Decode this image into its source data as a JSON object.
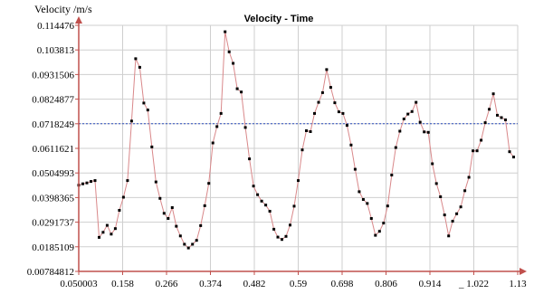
{
  "chart_data": {
    "type": "line",
    "title": "Velocity - Time",
    "ylabel": "Velocity /m/s",
    "xlabel": "",
    "colors": {
      "axis": "#c0504d",
      "grid": "#cfcfcf",
      "line": "#d9888a",
      "marker": "#000000",
      "reference": "#2b4fbf"
    },
    "xlim": [
      0.050003,
      1.13
    ],
    "ylim": [
      0.00784812,
      0.114476
    ],
    "x_ticks": [
      0.050003,
      0.158,
      0.266,
      0.374,
      0.482,
      0.59,
      0.698,
      0.806,
      0.914,
      1.022,
      1.13
    ],
    "x_tick_labels": [
      "0.050003",
      "0.158",
      "0.266",
      "0.374",
      "0.482",
      "0.59",
      "0.698",
      "0.806",
      "0.914",
      "_ 1.022",
      "1.13"
    ],
    "y_ticks": [
      0.00784812,
      0.0185109,
      0.0291737,
      0.0398365,
      0.0504993,
      0.0611621,
      0.0718249,
      0.0824877,
      0.0931506,
      0.103813,
      0.114476
    ],
    "y_tick_labels": [
      "0.00784812",
      "0.0185109",
      "0.0291737",
      "0.0398365",
      "0.0504993",
      "0.0611621",
      "0.0718249",
      "0.0824877",
      "0.0931506",
      "0.103813",
      "0.114476"
    ],
    "reference_line": 0.0718249,
    "grid": true,
    "series": [
      {
        "x": [
          0.05,
          0.06,
          0.07,
          0.08,
          0.09,
          0.1,
          0.11,
          0.12,
          0.13,
          0.14,
          0.15,
          0.16,
          0.17,
          0.18,
          0.19,
          0.2,
          0.21,
          0.22,
          0.23,
          0.24,
          0.25,
          0.26,
          0.27,
          0.28,
          0.29,
          0.3,
          0.31,
          0.32,
          0.33,
          0.34,
          0.35,
          0.36,
          0.37,
          0.38,
          0.39,
          0.4,
          0.41,
          0.42,
          0.43,
          0.44,
          0.45,
          0.46,
          0.47,
          0.48,
          0.49,
          0.5,
          0.51,
          0.52,
          0.53,
          0.54,
          0.55,
          0.56,
          0.57,
          0.58,
          0.59,
          0.6,
          0.61,
          0.62,
          0.63,
          0.64,
          0.65,
          0.66,
          0.67,
          0.68,
          0.69,
          0.7,
          0.71,
          0.72,
          0.73,
          0.74,
          0.75,
          0.76,
          0.77,
          0.78,
          0.79,
          0.8,
          0.81,
          0.82,
          0.83,
          0.84,
          0.85,
          0.86,
          0.87,
          0.88,
          0.89,
          0.9,
          0.91,
          0.92,
          0.93,
          0.94,
          0.95,
          0.96,
          0.97,
          0.98,
          0.99,
          1.0,
          1.01,
          1.02,
          1.03,
          1.04,
          1.05,
          1.06,
          1.07,
          1.08,
          1.09,
          1.1,
          1.11,
          1.12
        ],
        "values": [
          0.0452,
          0.0458,
          0.0462,
          0.0468,
          0.0472,
          0.0226,
          0.0248,
          0.0278,
          0.024,
          0.0264,
          0.0343,
          0.04,
          0.0472,
          0.073,
          0.1,
          0.0963,
          0.0808,
          0.0778,
          0.0618,
          0.0466,
          0.0395,
          0.033,
          0.0308,
          0.0355,
          0.0274,
          0.0232,
          0.0196,
          0.018,
          0.0196,
          0.0213,
          0.0277,
          0.0363,
          0.046,
          0.0635,
          0.0706,
          0.0763,
          0.1117,
          0.103,
          0.098,
          0.087,
          0.0856,
          0.0702,
          0.0566,
          0.0448,
          0.0411,
          0.0383,
          0.0366,
          0.0339,
          0.0261,
          0.0227,
          0.0217,
          0.023,
          0.0279,
          0.0361,
          0.0472,
          0.0605,
          0.0688,
          0.0684,
          0.0763,
          0.0811,
          0.0853,
          0.0953,
          0.0876,
          0.0809,
          0.077,
          0.0763,
          0.0711,
          0.0626,
          0.0521,
          0.0424,
          0.039,
          0.0373,
          0.0308,
          0.0235,
          0.0252,
          0.0288,
          0.0362,
          0.0496,
          0.0615,
          0.0686,
          0.0739,
          0.076,
          0.0771,
          0.0811,
          0.0725,
          0.0683,
          0.0681,
          0.0545,
          0.0459,
          0.0402,
          0.0323,
          0.0232,
          0.0296,
          0.0328,
          0.0358,
          0.0428,
          0.0486,
          0.0601,
          0.0601,
          0.0647,
          0.0723,
          0.0781,
          0.0848,
          0.0755,
          0.0745,
          0.0735,
          0.0597,
          0.0574
        ]
      }
    ]
  }
}
